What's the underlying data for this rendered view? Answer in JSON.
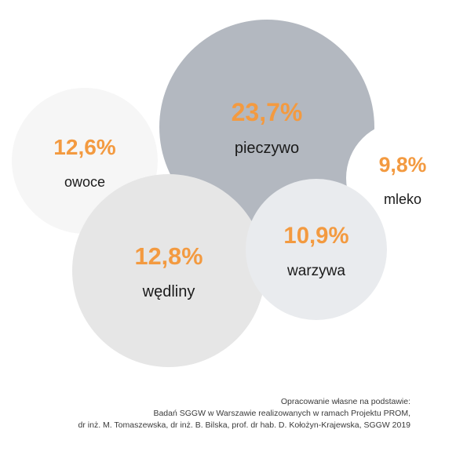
{
  "chart_data": {
    "type": "bubble",
    "unit": "%",
    "bubbles": [
      {
        "label": "owoce",
        "value": 12.6,
        "value_text": "12,6%",
        "fill": "#f6f6f6"
      },
      {
        "label": "pieczywo",
        "value": 23.7,
        "value_text": "23,7%",
        "fill": "#b3b8c0"
      },
      {
        "label": "mleko",
        "value": 9.8,
        "value_text": "9,8%",
        "fill": "#ffffff"
      },
      {
        "label": "wędliny",
        "value": 12.8,
        "value_text": "12,8%",
        "fill": "#e6e6e6"
      },
      {
        "label": "warzywa",
        "value": 10.9,
        "value_text": "10,9%",
        "fill": "#e9ebee"
      }
    ]
  },
  "colors": {
    "value_text": "#f39a40",
    "label_text": "#1a1a1a"
  },
  "source": {
    "line1": "Opracowanie własne na podstawie:",
    "line2": "Badań SGGW w Warszawie realizowanych w ramach Projektu PROM,",
    "line3": "dr inż. M. Tomaszewska, dr inż. B. Bilska, prof. dr hab. D. Kołożyn-Krajewska, SGGW 2019"
  }
}
